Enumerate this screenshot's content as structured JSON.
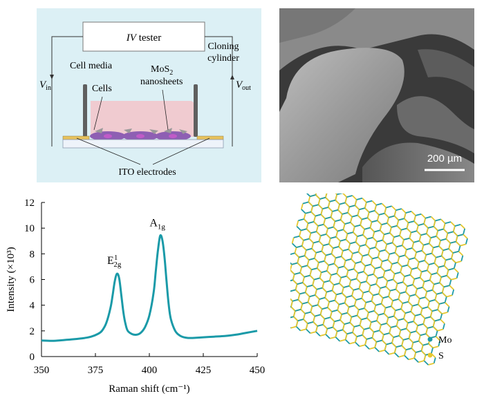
{
  "schematic": {
    "tester_italic": "IV",
    "tester_rest": " tester",
    "cell_media": "Cell media",
    "cells": "Cells",
    "mos2_base": "MoS",
    "mos2_sub": "2",
    "nanosheets": "nanosheets",
    "cloning_line1": "Cloning",
    "cloning_line2": "cylinder",
    "vin_main": "V",
    "vin_sub": "in",
    "vout_main": "V",
    "vout_sub": "out",
    "ito": "ITO electrodes"
  },
  "sem": {
    "scale_label": "200 µm"
  },
  "chart_data": {
    "type": "line",
    "xlabel": "Raman shift (cm⁻¹)",
    "ylabel": "Intensity (×10³)",
    "xlim": [
      350,
      450
    ],
    "ylim": [
      0,
      12
    ],
    "xticks": [
      350,
      375,
      400,
      425,
      450
    ],
    "yticks": [
      0,
      2,
      4,
      6,
      8,
      10,
      12
    ],
    "line_color": "#1a9aa8",
    "series": [
      {
        "x": [
          350,
          355,
          360,
          365,
          370,
          373,
          376,
          378,
          380,
          382,
          383,
          384,
          385,
          386,
          387,
          388,
          389,
          390,
          392,
          394,
          396,
          398,
          400,
          402,
          403,
          404,
          405,
          406,
          407,
          408,
          409,
          410,
          412,
          414,
          416,
          418,
          420,
          425,
          430,
          435,
          440,
          445,
          450
        ],
        "y": [
          1.25,
          1.22,
          1.28,
          1.35,
          1.45,
          1.55,
          1.75,
          2.0,
          2.6,
          3.8,
          4.8,
          5.9,
          6.45,
          6.1,
          4.8,
          3.4,
          2.5,
          2.0,
          1.75,
          1.7,
          1.85,
          2.3,
          3.2,
          5.0,
          6.7,
          8.3,
          9.4,
          9.1,
          7.8,
          5.8,
          4.0,
          2.9,
          2.0,
          1.65,
          1.5,
          1.45,
          1.45,
          1.5,
          1.55,
          1.6,
          1.7,
          1.85,
          2.0
        ]
      }
    ],
    "annotations": [
      {
        "base": "E",
        "sup": "1",
        "sub": "2g",
        "x": 385,
        "y": 6.45
      },
      {
        "base": "A",
        "sup": "",
        "sub": "1g",
        "x": 405,
        "y": 9.4
      }
    ]
  },
  "lattice": {
    "legend": [
      {
        "label": "Mo",
        "color": "#1e9aa6"
      },
      {
        "label": "S",
        "color": "#e6c72e"
      }
    ]
  }
}
